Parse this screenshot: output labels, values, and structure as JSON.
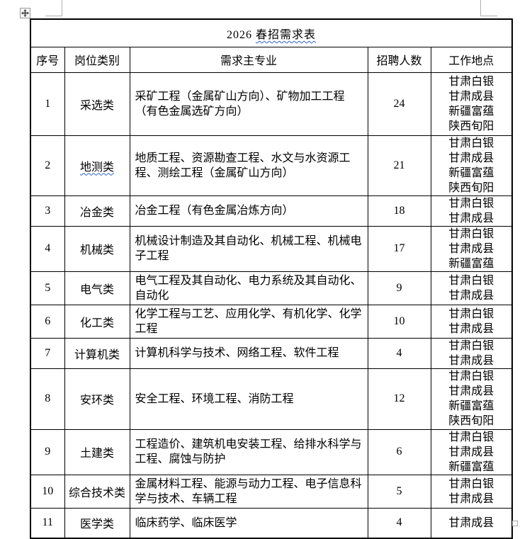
{
  "document": {
    "title": {
      "prefix": "2026 ",
      "underlined": "春招需求表"
    }
  },
  "table": {
    "headers": [
      "序号",
      "岗位类别",
      "需求主专业",
      "招聘人数",
      "工作地点"
    ],
    "rows": [
      {
        "no": "1",
        "category": "采选类",
        "spellcheck_underline": false,
        "majors": "采矿工程（金属矿山方向）、矿物加工工程（有色金属选矿方向）",
        "count": "24",
        "locations": [
          "甘肃白银",
          "甘肃成县",
          "新疆富蕴",
          "陕西旬阳"
        ]
      },
      {
        "no": "2",
        "category": "地测类",
        "spellcheck_underline": true,
        "majors": "地质工程、资源勘查工程、水文与水资源工程、测绘工程（金属矿山方向）",
        "count": "21",
        "locations": [
          "甘肃白银",
          "甘肃成县",
          "新疆富蕴",
          "陕西旬阳"
        ]
      },
      {
        "no": "3",
        "category": "冶金类",
        "spellcheck_underline": false,
        "majors": "冶金工程（有色金属冶炼方向）",
        "count": "18",
        "locations": [
          "甘肃白银",
          "甘肃成县"
        ]
      },
      {
        "no": "4",
        "category": "机械类",
        "spellcheck_underline": false,
        "majors": "机械设计制造及其自动化、机械工程、机械电子工程",
        "count": "17",
        "locations": [
          "甘肃白银",
          "甘肃成县",
          "新疆富蕴"
        ]
      },
      {
        "no": "5",
        "category": "电气类",
        "spellcheck_underline": false,
        "majors": "电气工程及其自动化、电力系统及其自动化、自动化",
        "count": "9",
        "locations": [
          "甘肃白银",
          "甘肃成县"
        ]
      },
      {
        "no": "6",
        "category": "化工类",
        "spellcheck_underline": false,
        "majors": "化学工程与工艺、应用化学、有机化学、化学工程",
        "count": "10",
        "locations": [
          "甘肃白银",
          "甘肃成县"
        ]
      },
      {
        "no": "7",
        "category": "计算机类",
        "spellcheck_underline": false,
        "majors": "计算机科学与技术、网络工程、软件工程",
        "count": "4",
        "locations": [
          "甘肃白银",
          "甘肃成县"
        ]
      },
      {
        "no": "8",
        "category": "安环类",
        "spellcheck_underline": false,
        "majors": "安全工程、环境工程、消防工程",
        "count": "12",
        "locations": [
          "甘肃白银",
          "甘肃成县",
          "新疆富蕴",
          "陕西旬阳"
        ]
      },
      {
        "no": "9",
        "category": "土建类",
        "spellcheck_underline": false,
        "majors": "工程造价、建筑机电安装工程、给排水科学与工程、腐蚀与防护",
        "count": "6",
        "locations": [
          "甘肃白银",
          "甘肃成县",
          "新疆富蕴"
        ]
      },
      {
        "no": "10",
        "category": "综合技术类",
        "spellcheck_underline": false,
        "majors": "金属材料工程、能源与动力工程、电子信息科学与技术、车辆工程",
        "count": "5",
        "locations": [
          "甘肃白银",
          "甘肃成县"
        ]
      },
      {
        "no": "11",
        "category": "医学类",
        "spellcheck_underline": false,
        "majors": "临床药学、临床医学",
        "count": "4",
        "locations": [
          "甘肃成县"
        ]
      }
    ]
  },
  "word_ui": {
    "move_handle_icon": "table-move-handle",
    "resize_handle_icon": "table-resize-handle",
    "crop_marks": [
      "top-left-margin-corner",
      "top-right-margin-corner"
    ]
  },
  "colors": {
    "spellcheck_underline": "#2E5FD0",
    "table_border": "#000000",
    "crop_mark": "#B0B0B0",
    "handle_border": "#999999"
  }
}
